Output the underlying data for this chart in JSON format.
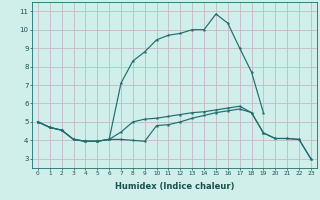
{
  "xlabel": "Humidex (Indice chaleur)",
  "bg_color": "#d0eeea",
  "grid_color": "#c8b8c8",
  "line_color": "#1e6e6e",
  "xlim": [
    -0.5,
    23.5
  ],
  "ylim": [
    2.5,
    11.5
  ],
  "xticks": [
    0,
    1,
    2,
    3,
    4,
    5,
    6,
    7,
    8,
    9,
    10,
    11,
    12,
    13,
    14,
    15,
    16,
    17,
    18,
    19,
    20,
    21,
    22,
    23
  ],
  "yticks": [
    3,
    4,
    5,
    6,
    7,
    8,
    9,
    10,
    11
  ],
  "line1_y": [
    5.0,
    4.7,
    4.55,
    4.05,
    3.95,
    3.95,
    4.05,
    4.05,
    4.0,
    3.95,
    4.8,
    4.85,
    5.0,
    5.2,
    5.35,
    5.5,
    5.6,
    5.7,
    5.5,
    4.4,
    4.1,
    4.1,
    4.05,
    3.0
  ],
  "line2_y": [
    5.0,
    4.7,
    4.55,
    4.05,
    3.95,
    3.95,
    4.05,
    7.1,
    8.3,
    8.8,
    9.45,
    9.7,
    9.8,
    10.0,
    10.0,
    10.85,
    10.35,
    9.0,
    7.7,
    5.5,
    null,
    null,
    null,
    null
  ],
  "line3_y": [
    5.0,
    4.7,
    4.55,
    4.05,
    3.95,
    3.95,
    4.05,
    4.45,
    5.0,
    5.15,
    5.2,
    5.3,
    5.4,
    5.5,
    5.55,
    5.65,
    5.75,
    5.85,
    5.5,
    4.4,
    4.1,
    4.1,
    4.05,
    3.0
  ]
}
